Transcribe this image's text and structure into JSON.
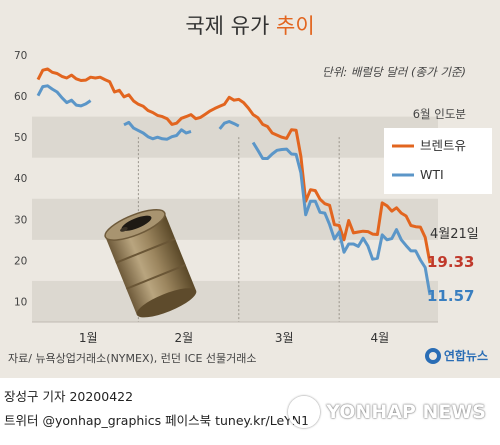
{
  "title": {
    "main": "국제 유가",
    "sub": "추이"
  },
  "unit_note": "단위: 배럴당 달러 (종가 기준)",
  "delivery_note": "6월 인도분",
  "annotation": {
    "date": "4월21일",
    "brent_value": "19.33",
    "wti_value": "11.57"
  },
  "source": "자료/ 뉴욕상업거래소(NYMEX), 런던 ICE 선물거래소",
  "logo_text": "연합뉴스",
  "credit_line1": "장성구 기자  20200422",
  "credit_line2": "트위터 @yonhap_graphics  페이스북 tuney.kr/LeYN1",
  "watermark": "YONHAP NEWS",
  "colors": {
    "brent": "#e2651f",
    "wti": "#5b96c8",
    "band": "#dcd8d0",
    "accent_value": "#c0392b",
    "wti_value": "#3a7fc0"
  },
  "chart_data": {
    "type": "line",
    "title": "국제 유가 추이",
    "xlabel": "",
    "ylabel": "",
    "ylim": [
      5,
      70
    ],
    "yticks": [
      10,
      20,
      30,
      40,
      50,
      60,
      70
    ],
    "month_labels": [
      "1월",
      "2월",
      "3월",
      "4월"
    ],
    "month_positions": [
      10.5,
      30.5,
      51.5,
      71.5
    ],
    "month_separators": [
      21,
      42,
      63
    ],
    "grid": false,
    "legend_position": "right",
    "x": [
      0,
      1,
      2,
      3,
      4,
      5,
      6,
      7,
      8,
      9,
      10,
      11,
      12,
      13,
      14,
      15,
      16,
      17,
      18,
      19,
      20,
      21,
      22,
      23,
      24,
      25,
      26,
      27,
      28,
      29,
      30,
      31,
      32,
      33,
      34,
      35,
      36,
      37,
      38,
      39,
      40,
      41,
      42,
      43,
      44,
      45,
      46,
      47,
      48,
      49,
      50,
      51,
      52,
      53,
      54,
      55,
      56,
      57,
      58,
      59,
      60,
      61,
      62,
      63,
      64,
      65,
      66,
      67,
      68,
      69,
      70,
      71,
      72,
      73,
      74,
      75,
      76,
      77,
      78,
      79,
      80,
      81,
      82
    ],
    "series": [
      {
        "name": "브렌트유",
        "values": [
          64,
          66.3,
          66.6,
          65.8,
          65.5,
          64.8,
          64.4,
          65.1,
          64.2,
          63.8,
          63.9,
          64.6,
          64.4,
          64.6,
          64,
          63.5,
          61,
          61.4,
          59.8,
          60.3,
          58.8,
          58,
          57.5,
          56.5,
          56,
          55.3,
          55,
          54.5,
          53.1,
          53.4,
          54.6,
          55,
          55.5,
          54.5,
          54.8,
          55.6,
          56.4,
          57,
          57.5,
          58,
          59.7,
          59,
          59.2,
          58.4,
          57.1,
          55.5,
          54.7,
          53.1,
          52.6,
          51,
          50.5,
          50,
          49.7,
          51.8,
          51.7,
          45.3,
          34.4,
          37.2,
          37,
          34.9,
          33.8,
          33.4,
          28.7,
          28.5,
          25,
          29.7,
          26.7,
          26.9,
          27.1,
          27,
          26.4,
          26.3,
          34,
          33.3,
          32,
          32.8,
          31.5,
          30.8,
          28.5,
          28.2,
          28.1,
          25.6,
          19.33
        ],
        "raw_note": ""
      },
      {
        "name": "WTI",
        "values": [
          60.1,
          62.3,
          62.5,
          61.7,
          61,
          59.6,
          58.4,
          59,
          57.8,
          57.6,
          58.1,
          58.9,
          null,
          null,
          null,
          null,
          null,
          null,
          53,
          53.6,
          52.2,
          51.6,
          51,
          50.1,
          49.6,
          50,
          49.6,
          49.5,
          50.1,
          50.4,
          51.8,
          51,
          51.4,
          null,
          null,
          null,
          null,
          null,
          52,
          53.4,
          53.8,
          53.3,
          52.7,
          null,
          null,
          48.7,
          46.8,
          44.8,
          44.8,
          45.9,
          46.8,
          47,
          47.1,
          45.9,
          45.8,
          41.3,
          31.1,
          34.4,
          34.4,
          31.7,
          31.5,
          28.7,
          25.2,
          26.9,
          22,
          24,
          24,
          23.4,
          25.4,
          23.5,
          20.3,
          20.5,
          26.2,
          25,
          25.3,
          27.5,
          25,
          23.6,
          22.3,
          22.3,
          20.1,
          18.27,
          11.57
        ]
      }
    ]
  }
}
